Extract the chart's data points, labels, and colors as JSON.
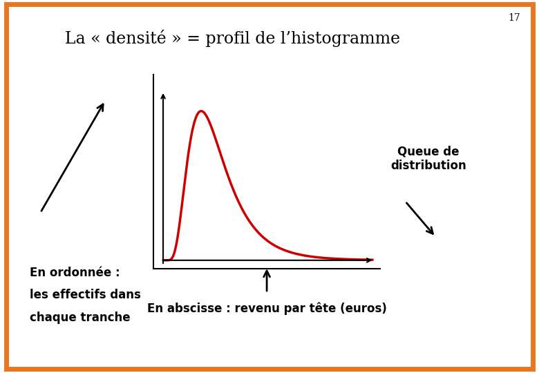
{
  "title": "La « densité » = profil de l’histogramme",
  "slide_number": "17",
  "border_color": "#E87722",
  "background_color": "#FFFFFF",
  "curve_color": "#CC0000",
  "curve_linewidth": 2.5,
  "text_color": "#000000",
  "label_bottom_left_line1": "En ordonnée :",
  "label_bottom_left_line2": "les effectifs dans",
  "label_bottom_left_line3": "chaque tranche",
  "label_bottom_center": "En abscisse : revenu par tête (euros)",
  "label_right": "Queue de\ndistribution",
  "title_fontsize": 17,
  "annotation_fontsize": 12,
  "slide_number_fontsize": 10,
  "curve_mu": 0.25,
  "curve_sigma": 0.5
}
